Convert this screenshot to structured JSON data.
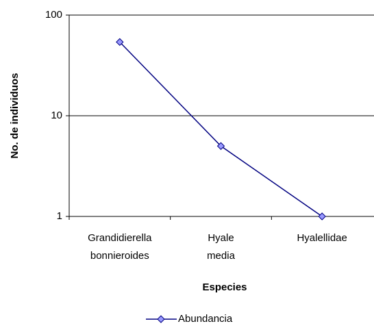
{
  "chart_data": {
    "type": "line",
    "x_label": "Especies",
    "y_label": "No. de individuos",
    "categories": [
      "Grandidierella bonnieroides",
      "Hyale media",
      "Hyalellidae"
    ],
    "series": [
      {
        "name": "Abundancia",
        "color": "#000080",
        "marker_color": "#9999ff",
        "values": [
          54,
          5,
          1
        ]
      }
    ],
    "ylim": [
      1,
      100
    ],
    "yticks": [
      1,
      10,
      100
    ],
    "log_y": true,
    "grid": true,
    "legend": "bottom"
  }
}
